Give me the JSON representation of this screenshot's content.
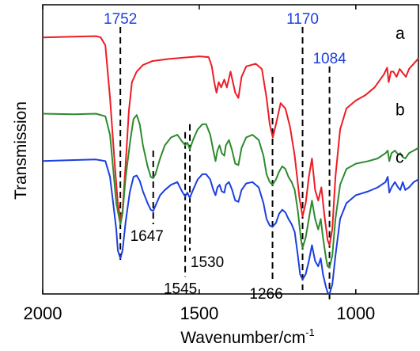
{
  "chart_data": {
    "type": "line",
    "title": "",
    "xlabel": "Wavenumber/cm",
    "xlabel_superscript": "-1",
    "ylabel": "Transmission",
    "xlim": [
      2000,
      800
    ],
    "x_reversed": true,
    "x_ticks": [
      2000,
      1500,
      1000
    ],
    "y_ticks_shown": false,
    "grid": false,
    "legend": "none",
    "series": [
      {
        "name": "a",
        "color": "#ee1c25",
        "points": [
          [
            2000,
            0.93
          ],
          [
            1900,
            0.933
          ],
          [
            1830,
            0.935
          ],
          [
            1815,
            0.93
          ],
          [
            1800,
            0.9
          ],
          [
            1785,
            0.7
          ],
          [
            1770,
            0.45
          ],
          [
            1760,
            0.3
          ],
          [
            1752,
            0.24
          ],
          [
            1745,
            0.27
          ],
          [
            1735,
            0.45
          ],
          [
            1725,
            0.65
          ],
          [
            1715,
            0.76
          ],
          [
            1700,
            0.8
          ],
          [
            1680,
            0.825
          ],
          [
            1650,
            0.84
          ],
          [
            1600,
            0.848
          ],
          [
            1550,
            0.853
          ],
          [
            1500,
            0.858
          ],
          [
            1470,
            0.855
          ],
          [
            1460,
            0.82
          ],
          [
            1452,
            0.76
          ],
          [
            1445,
            0.72
          ],
          [
            1438,
            0.76
          ],
          [
            1430,
            0.74
          ],
          [
            1420,
            0.77
          ],
          [
            1412,
            0.74
          ],
          [
            1400,
            0.8
          ],
          [
            1385,
            0.72
          ],
          [
            1375,
            0.7
          ],
          [
            1365,
            0.78
          ],
          [
            1350,
            0.82
          ],
          [
            1320,
            0.83
          ],
          [
            1300,
            0.81
          ],
          [
            1285,
            0.7
          ],
          [
            1275,
            0.6
          ],
          [
            1265,
            0.55
          ],
          [
            1255,
            0.6
          ],
          [
            1240,
            0.68
          ],
          [
            1225,
            0.66
          ],
          [
            1210,
            0.59
          ],
          [
            1195,
            0.48
          ],
          [
            1180,
            0.32
          ],
          [
            1170,
            0.25
          ],
          [
            1160,
            0.3
          ],
          [
            1150,
            0.4
          ],
          [
            1140,
            0.47
          ],
          [
            1130,
            0.35
          ],
          [
            1120,
            0.31
          ],
          [
            1110,
            0.36
          ],
          [
            1100,
            0.25
          ],
          [
            1090,
            0.16
          ],
          [
            1084,
            0.14
          ],
          [
            1075,
            0.2
          ],
          [
            1065,
            0.4
          ],
          [
            1050,
            0.58
          ],
          [
            1030,
            0.66
          ],
          [
            1000,
            0.69
          ],
          [
            970,
            0.71
          ],
          [
            940,
            0.74
          ],
          [
            910,
            0.79
          ],
          [
            900,
            0.815
          ],
          [
            895,
            0.76
          ],
          [
            888,
            0.8
          ],
          [
            880,
            0.8
          ],
          [
            870,
            0.78
          ],
          [
            860,
            0.81
          ],
          [
            850,
            0.795
          ],
          [
            840,
            0.78
          ],
          [
            830,
            0.81
          ],
          [
            815,
            0.83
          ],
          [
            800,
            0.85
          ]
        ]
      },
      {
        "name": "b",
        "color": "#2e8b2e",
        "points": [
          [
            2000,
            0.64
          ],
          [
            1900,
            0.638
          ],
          [
            1830,
            0.64
          ],
          [
            1800,
            0.63
          ],
          [
            1785,
            0.56
          ],
          [
            1775,
            0.43
          ],
          [
            1765,
            0.3
          ],
          [
            1752,
            0.22
          ],
          [
            1745,
            0.26
          ],
          [
            1735,
            0.4
          ],
          [
            1720,
            0.54
          ],
          [
            1710,
            0.62
          ],
          [
            1700,
            0.635
          ],
          [
            1690,
            0.6
          ],
          [
            1680,
            0.52
          ],
          [
            1665,
            0.44
          ],
          [
            1655,
            0.4
          ],
          [
            1647,
            0.395
          ],
          [
            1640,
            0.41
          ],
          [
            1625,
            0.47
          ],
          [
            1610,
            0.52
          ],
          [
            1590,
            0.55
          ],
          [
            1570,
            0.56
          ],
          [
            1555,
            0.535
          ],
          [
            1545,
            0.52
          ],
          [
            1538,
            0.53
          ],
          [
            1530,
            0.505
          ],
          [
            1520,
            0.54
          ],
          [
            1505,
            0.58
          ],
          [
            1490,
            0.6
          ],
          [
            1478,
            0.6
          ],
          [
            1465,
            0.56
          ],
          [
            1455,
            0.5
          ],
          [
            1448,
            0.46
          ],
          [
            1442,
            0.5
          ],
          [
            1435,
            0.52
          ],
          [
            1428,
            0.49
          ],
          [
            1420,
            0.48
          ],
          [
            1415,
            0.52
          ],
          [
            1405,
            0.54
          ],
          [
            1395,
            0.5
          ],
          [
            1385,
            0.45
          ],
          [
            1375,
            0.445
          ],
          [
            1365,
            0.51
          ],
          [
            1350,
            0.55
          ],
          [
            1330,
            0.56
          ],
          [
            1310,
            0.54
          ],
          [
            1295,
            0.48
          ],
          [
            1285,
            0.41
          ],
          [
            1275,
            0.38
          ],
          [
            1266,
            0.37
          ],
          [
            1255,
            0.39
          ],
          [
            1245,
            0.42
          ],
          [
            1235,
            0.44
          ],
          [
            1225,
            0.43
          ],
          [
            1215,
            0.4
          ],
          [
            1205,
            0.38
          ],
          [
            1195,
            0.35
          ],
          [
            1185,
            0.27
          ],
          [
            1175,
            0.16
          ],
          [
            1170,
            0.13
          ],
          [
            1160,
            0.17
          ],
          [
            1150,
            0.24
          ],
          [
            1140,
            0.31
          ],
          [
            1130,
            0.24
          ],
          [
            1120,
            0.2
          ],
          [
            1112,
            0.24
          ],
          [
            1105,
            0.17
          ],
          [
            1095,
            0.09
          ],
          [
            1090,
            0.06
          ],
          [
            1084,
            0.055
          ],
          [
            1075,
            0.1
          ],
          [
            1065,
            0.24
          ],
          [
            1050,
            0.37
          ],
          [
            1030,
            0.43
          ],
          [
            1000,
            0.45
          ],
          [
            960,
            0.46
          ],
          [
            930,
            0.47
          ],
          [
            905,
            0.49
          ],
          [
            898,
            0.5
          ],
          [
            893,
            0.46
          ],
          [
            886,
            0.49
          ],
          [
            875,
            0.5
          ],
          [
            865,
            0.485
          ],
          [
            858,
            0.49
          ],
          [
            850,
            0.475
          ],
          [
            842,
            0.47
          ],
          [
            830,
            0.49
          ],
          [
            815,
            0.5
          ],
          [
            800,
            0.51
          ]
        ]
      },
      {
        "name": "c",
        "color": "#1c3fe0",
        "points": [
          [
            2000,
            0.46
          ],
          [
            1900,
            0.464
          ],
          [
            1830,
            0.466
          ],
          [
            1800,
            0.46
          ],
          [
            1785,
            0.4
          ],
          [
            1775,
            0.3
          ],
          [
            1765,
            0.2
          ],
          [
            1760,
            0.12
          ],
          [
            1752,
            0.09
          ],
          [
            1745,
            0.12
          ],
          [
            1735,
            0.23
          ],
          [
            1722,
            0.34
          ],
          [
            1710,
            0.4
          ],
          [
            1700,
            0.405
          ],
          [
            1690,
            0.385
          ],
          [
            1680,
            0.345
          ],
          [
            1665,
            0.3
          ],
          [
            1655,
            0.275
          ],
          [
            1647,
            0.27
          ],
          [
            1640,
            0.29
          ],
          [
            1625,
            0.33
          ],
          [
            1610,
            0.35
          ],
          [
            1590,
            0.37
          ],
          [
            1570,
            0.38
          ],
          [
            1555,
            0.345
          ],
          [
            1545,
            0.325
          ],
          [
            1538,
            0.34
          ],
          [
            1530,
            0.32
          ],
          [
            1520,
            0.35
          ],
          [
            1505,
            0.39
          ],
          [
            1490,
            0.41
          ],
          [
            1478,
            0.41
          ],
          [
            1465,
            0.39
          ],
          [
            1455,
            0.35
          ],
          [
            1448,
            0.33
          ],
          [
            1442,
            0.36
          ],
          [
            1435,
            0.37
          ],
          [
            1428,
            0.345
          ],
          [
            1420,
            0.34
          ],
          [
            1415,
            0.37
          ],
          [
            1405,
            0.38
          ],
          [
            1395,
            0.35
          ],
          [
            1385,
            0.31
          ],
          [
            1375,
            0.305
          ],
          [
            1365,
            0.35
          ],
          [
            1350,
            0.375
          ],
          [
            1330,
            0.38
          ],
          [
            1310,
            0.36
          ],
          [
            1295,
            0.3
          ],
          [
            1285,
            0.24
          ],
          [
            1275,
            0.215
          ],
          [
            1266,
            0.21
          ],
          [
            1255,
            0.225
          ],
          [
            1245,
            0.26
          ],
          [
            1235,
            0.275
          ],
          [
            1225,
            0.265
          ],
          [
            1215,
            0.24
          ],
          [
            1205,
            0.22
          ],
          [
            1195,
            0.19
          ],
          [
            1185,
            0.1
          ],
          [
            1178,
            0.03
          ],
          [
            1170,
            0.01
          ],
          [
            1160,
            0.03
          ],
          [
            1150,
            0.08
          ],
          [
            1140,
            0.14
          ],
          [
            1130,
            0.08
          ],
          [
            1120,
            0.06
          ],
          [
            1112,
            0.09
          ],
          [
            1105,
            0.03
          ],
          [
            1095,
            -0.02
          ],
          [
            1090,
            -0.04
          ],
          [
            1084,
            -0.045
          ],
          [
            1075,
            -0.01
          ],
          [
            1065,
            0.1
          ],
          [
            1050,
            0.24
          ],
          [
            1030,
            0.3
          ],
          [
            1000,
            0.33
          ],
          [
            960,
            0.345
          ],
          [
            930,
            0.36
          ],
          [
            905,
            0.38
          ],
          [
            898,
            0.4
          ],
          [
            893,
            0.34
          ],
          [
            886,
            0.36
          ],
          [
            875,
            0.38
          ],
          [
            865,
            0.36
          ],
          [
            858,
            0.35
          ],
          [
            850,
            0.38
          ],
          [
            842,
            0.35
          ],
          [
            830,
            0.36
          ],
          [
            815,
            0.38
          ],
          [
            800,
            0.39
          ]
        ]
      }
    ],
    "series_labels": [
      "a",
      "b",
      "c"
    ],
    "peak_markers": [
      {
        "x": 1752,
        "label": "1752",
        "color": "#1c3fe0",
        "line_top": 0.97,
        "line_bottom": 0.08,
        "label_pos": "top"
      },
      {
        "x": 1647,
        "label": "1647",
        "color": "#000000",
        "line_top": 0.5,
        "line_bottom": 0.22,
        "label_pos": "bottom"
      },
      {
        "x": 1545,
        "label": "1545",
        "color": "#000000",
        "line_top": 0.57,
        "line_bottom": 0.02,
        "label_pos": "bottom"
      },
      {
        "x": 1530,
        "label": "1530",
        "color": "#000000",
        "line_top": 0.6,
        "line_bottom": 0.12,
        "label_pos": "bottom"
      },
      {
        "x": 1266,
        "label": "1266",
        "color": "#000000",
        "line_top": 0.78,
        "line_bottom": 0.0,
        "label_pos": "bottom"
      },
      {
        "x": 1170,
        "label": "1170",
        "color": "#1c3fe0",
        "line_top": 0.97,
        "line_bottom": -0.03,
        "label_pos": "top"
      },
      {
        "x": 1084,
        "label": "1084",
        "color": "#1c3fe0",
        "line_top": 0.82,
        "line_bottom": -0.07,
        "label_pos": "top"
      }
    ]
  }
}
